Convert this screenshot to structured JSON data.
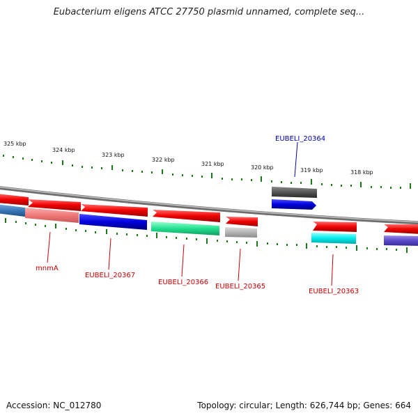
{
  "title": "Eubacterium eligens ATCC 27750 plasmid unnamed, complete seq...",
  "accession": "Accession: NC_012780",
  "stats": "Topology: circular; Length: 626,744 bp; Genes: 664",
  "colors": {
    "backbone": "#8a8a8a",
    "tick": "#1a7a1a",
    "label_red": "#cc0000",
    "label_blue": "#0000aa"
  },
  "ruler": {
    "labels": [
      "325 kbp",
      "324 kbp",
      "323 kbp",
      "322 kbp",
      "321 kbp",
      "320 kbp",
      "319 kbp",
      "318 kbp"
    ]
  },
  "genes": [
    {
      "name": "mnmA",
      "label": "mnmA",
      "color": "#f08080",
      "label_color": "red"
    },
    {
      "name": "EUBELI_20367",
      "label": "EUBELI_20367",
      "color": "#0000ee",
      "label_color": "red"
    },
    {
      "name": "EUBELI_20366",
      "label": "EUBELI_20366",
      "color": "#33ee99",
      "label_color": "red"
    },
    {
      "name": "EUBELI_20365",
      "label": "EUBELI_20365",
      "color": "#bbbbbb",
      "label_color": "red"
    },
    {
      "name": "EUBELI_20364",
      "label": "EUBELI_20364",
      "color": "#0000ee",
      "label_color": "blue"
    },
    {
      "name": "EUBELI_20363",
      "label": "EUBELI_20363",
      "color": "#00eeee",
      "label_color": "red"
    }
  ]
}
